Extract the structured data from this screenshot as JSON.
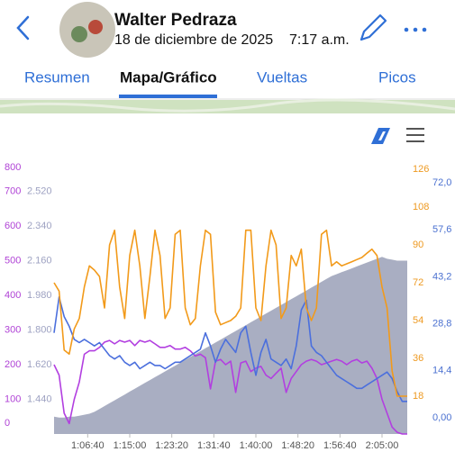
{
  "header": {
    "name": "Walter Pedraza",
    "date": "18 de diciembre de 2025",
    "time": "7:17 a.m."
  },
  "tabs": [
    "Resumen",
    "Mapa/Gráfico",
    "Vueltas",
    "Picos"
  ],
  "active_tab": 1,
  "chart_data": {
    "type": "line",
    "x": [
      3600,
      3660,
      3720,
      3780,
      3840,
      3900,
      3960,
      4020,
      4080,
      4140,
      4200,
      4260,
      4320,
      4380,
      4440,
      4500,
      4560,
      4620,
      4680,
      4740,
      4800,
      4860,
      4920,
      4980,
      5040,
      5100,
      5160,
      5220,
      5280,
      5340,
      5400,
      5460,
      5520,
      5580,
      5640,
      5700,
      5760,
      5820,
      5880,
      5940,
      6000,
      6060,
      6120,
      6180,
      6240,
      6300,
      6360,
      6420,
      6480,
      6540,
      6600,
      6660,
      6720,
      6780,
      6840,
      6900,
      6960,
      7020,
      7080,
      7140,
      7200,
      7260,
      7320,
      7380,
      7440,
      7500,
      7560,
      7620,
      7680,
      7740,
      7800
    ],
    "xlim": [
      3600,
      7800
    ],
    "xticks": [
      {
        "value": 4000,
        "label": "1:06:40"
      },
      {
        "value": 4500,
        "label": "1:15:00"
      },
      {
        "value": 5000,
        "label": "1:23:20"
      },
      {
        "value": 5500,
        "label": "1:31:40"
      },
      {
        "value": 6000,
        "label": "1:40:00"
      },
      {
        "value": 6500,
        "label": "1:48:20"
      },
      {
        "value": 7000,
        "label": "1:56:40"
      },
      {
        "value": 7500,
        "label": "2:05:00"
      }
    ],
    "yaxes": [
      {
        "side": "left",
        "color": "#b043d6",
        "lim": [
          0,
          800
        ],
        "ticks": [
          0,
          100,
          200,
          300,
          400,
          500,
          600,
          700,
          800
        ]
      },
      {
        "side": "left",
        "color": "#9ea2c2",
        "lim": [
          1260,
          2700
        ],
        "ticks": [
          {
            "value": 1440,
            "label": "1.440"
          },
          {
            "value": 1620,
            "label": "1.620"
          },
          {
            "value": 1800,
            "label": "1.800"
          },
          {
            "value": 1980,
            "label": "1.980"
          },
          {
            "value": 2160,
            "label": "2.160"
          },
          {
            "value": 2340,
            "label": "2.340"
          },
          {
            "value": 2520,
            "label": "2.520"
          }
        ]
      },
      {
        "side": "right",
        "color": "#ee9a22",
        "lim": [
          0,
          132
        ],
        "ticks": [
          18,
          36,
          54,
          72,
          90,
          108,
          126
        ]
      },
      {
        "side": "right",
        "color": "#4a70d0",
        "lim": [
          -5,
          80
        ],
        "ticks": [
          {
            "value": 0,
            "label": "0,00"
          },
          {
            "value": 14.4,
            "label": "14,4"
          },
          {
            "value": 28.8,
            "label": "28,8"
          },
          {
            "value": 43.2,
            "label": "43,2"
          },
          {
            "value": 57.6,
            "label": "57,6"
          },
          {
            "value": 72,
            "label": "72,0"
          }
        ]
      }
    ],
    "series": [
      {
        "axis": 1,
        "kind": "area",
        "color": "#a9aec2",
        "values": [
          1350,
          1345,
          1345,
          1350,
          1350,
          1355,
          1360,
          1365,
          1375,
          1390,
          1405,
          1420,
          1435,
          1450,
          1465,
          1480,
          1495,
          1510,
          1525,
          1540,
          1555,
          1570,
          1585,
          1600,
          1615,
          1630,
          1645,
          1660,
          1675,
          1690,
          1705,
          1720,
          1735,
          1750,
          1765,
          1780,
          1795,
          1810,
          1825,
          1840,
          1855,
          1870,
          1885,
          1900,
          1915,
          1930,
          1945,
          1960,
          1975,
          1990,
          2005,
          2020,
          2035,
          2050,
          2065,
          2080,
          2090,
          2100,
          2110,
          2120,
          2130,
          2140,
          2150,
          2160,
          2170,
          2180,
          2170,
          2165,
          2160,
          2160,
          2160
        ]
      },
      {
        "axis": 0,
        "kind": "line",
        "color": "#b23fe0",
        "values": [
          200,
          170,
          60,
          30,
          100,
          150,
          230,
          240,
          240,
          250,
          265,
          270,
          260,
          270,
          265,
          270,
          255,
          270,
          265,
          270,
          260,
          250,
          250,
          255,
          245,
          245,
          250,
          240,
          225,
          230,
          220,
          130,
          210,
          215,
          200,
          210,
          120,
          205,
          210,
          180,
          190,
          195,
          170,
          160,
          175,
          190,
          120,
          160,
          180,
          200,
          210,
          215,
          210,
          200,
          205,
          210,
          215,
          210,
          200,
          210,
          215,
          205,
          210,
          190,
          160,
          100,
          60,
          20,
          5,
          0,
          0
        ]
      },
      {
        "axis": 3,
        "kind": "line",
        "color": "#4b6fdd",
        "values": [
          26,
          37,
          31,
          28,
          24,
          23,
          24,
          23,
          22,
          23,
          21,
          19,
          18,
          19,
          17,
          16,
          17,
          15,
          16,
          17,
          16,
          16,
          15,
          16,
          17,
          17,
          18,
          19,
          20,
          21,
          26,
          22,
          17,
          21,
          24,
          22,
          20,
          26,
          28,
          20,
          13,
          20,
          24,
          18,
          17,
          16,
          18,
          15,
          22,
          33,
          36,
          22,
          20,
          19,
          17,
          15,
          13,
          12,
          11,
          10,
          9,
          9,
          10,
          11,
          12,
          13,
          14,
          12,
          8,
          5,
          5
        ]
      },
      {
        "axis": 2,
        "kind": "line",
        "color": "#f29a1a",
        "values": [
          72,
          68,
          40,
          38,
          50,
          55,
          70,
          80,
          78,
          75,
          60,
          90,
          97,
          70,
          55,
          85,
          97,
          80,
          55,
          75,
          97,
          85,
          55,
          60,
          95,
          97,
          60,
          52,
          55,
          80,
          97,
          95,
          58,
          52,
          53,
          54,
          56,
          60,
          97,
          97,
          60,
          54,
          80,
          97,
          90,
          55,
          60,
          85,
          80,
          88,
          60,
          54,
          60,
          95,
          97,
          80,
          82,
          80,
          81,
          82,
          83,
          84,
          86,
          88,
          85,
          70,
          60,
          30,
          18,
          18,
          18
        ]
      }
    ]
  }
}
